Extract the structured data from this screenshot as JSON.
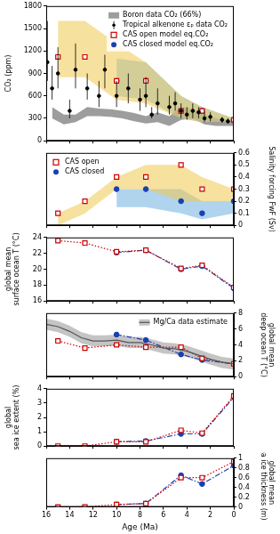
{
  "chart_data": [
    {
      "type": "line",
      "ylabel": "CO₂ (ppm)",
      "ylim": [
        0,
        1800
      ],
      "yticks": [
        0,
        300,
        600,
        900,
        1200,
        1500,
        1800
      ],
      "xlim": [
        16,
        0
      ],
      "xticks": [
        0,
        2,
        4,
        6,
        8,
        10,
        12,
        14,
        16
      ],
      "grid": false,
      "legend": "upper right",
      "tick_labels": "y",
      "series": [
        {
          "type": "band",
          "color": "#f0c850",
          "x": [
            15,
            12.7,
            10,
            7.5,
            4.5,
            2.7,
            0
          ],
          "lower": [
            850,
            850,
            550,
            500,
            300,
            250,
            260
          ],
          "upper": [
            1600,
            1600,
            1300,
            1050,
            600,
            450,
            300
          ]
        },
        {
          "type": "band",
          "color": "#6fb0e0",
          "x": [
            10,
            7.5,
            4.5,
            2.7,
            0
          ],
          "lower": [
            600,
            550,
            300,
            250,
            260
          ],
          "upper": [
            1100,
            1050,
            600,
            450,
            300
          ]
        },
        {
          "name": "Boron data CO₂ (66%)",
          "type": "band",
          "color": "#4d4d4d",
          "x": [
            15.5,
            14.5,
            13.5,
            12.5,
            11.5,
            10.5,
            9.5,
            8.5,
            7.5,
            6.5,
            5.5,
            4.5,
            3.5,
            2.5,
            1.5,
            0.5,
            0
          ],
          "lower": [
            300,
            220,
            250,
            330,
            330,
            320,
            300,
            260,
            230,
            250,
            200,
            280,
            300,
            220,
            200,
            200,
            200
          ],
          "upper": [
            450,
            350,
            350,
            450,
            430,
            420,
            400,
            370,
            330,
            380,
            330,
            450,
            430,
            350,
            300,
            280,
            280
          ]
        },
        {
          "name": "Tropical alkenone εₚ data CO₂",
          "type": "errorbar",
          "color": "#000000",
          "marker": "circle",
          "line_style": "none",
          "x": [
            15.9,
            15.5,
            15,
            14,
            13.5,
            12.5,
            11.5,
            11,
            10,
            9,
            8,
            7.5,
            7,
            6.5,
            5.5,
            5,
            4.5,
            4,
            3.5,
            3,
            2.5,
            2,
            1,
            0.5
          ],
          "values": [
            1050,
            700,
            900,
            400,
            950,
            700,
            600,
            950,
            600,
            700,
            550,
            600,
            350,
            500,
            450,
            500,
            400,
            350,
            400,
            380,
            300,
            320,
            280,
            260
          ],
          "lower": [
            800,
            550,
            700,
            300,
            700,
            550,
            450,
            700,
            450,
            500,
            400,
            450,
            300,
            350,
            350,
            400,
            300,
            280,
            300,
            300,
            250,
            260,
            240,
            230
          ],
          "upper": [
            1600,
            1000,
            1250,
            550,
            1300,
            900,
            800,
            1150,
            800,
            900,
            700,
            850,
            450,
            700,
            600,
            650,
            500,
            450,
            500,
            450,
            380,
            380,
            320,
            300
          ]
        },
        {
          "name": "CAS open model eq.CO₂",
          "type": "line",
          "color": "#cc0000",
          "marker": "square",
          "line_style": "none",
          "x": [
            15,
            12.7,
            10,
            7.5,
            4.5,
            2.7,
            0
          ],
          "values": [
            1120,
            1120,
            800,
            800,
            400,
            400,
            280
          ]
        },
        {
          "name": "CAS closed model eq.CO₂",
          "type": "line",
          "color": "#1a3fb0",
          "marker": "circle",
          "line_style": "none",
          "x": [
            10,
            7.5,
            4.5,
            2.7,
            0
          ],
          "values": [
            800,
            800,
            400,
            400,
            280
          ]
        }
      ]
    },
    {
      "type": "line",
      "y2label": "Salinity forcing FwF (Sv)",
      "y2lim": [
        0,
        0.6
      ],
      "y2ticks": [
        0,
        0.1,
        0.2,
        0.3,
        0.4,
        0.5,
        0.6
      ],
      "xlim": [
        16,
        0
      ],
      "xticks": [
        0,
        2,
        4,
        6,
        8,
        10,
        12,
        14,
        16
      ],
      "grid": false,
      "legend": "upper left",
      "tick_labels": "y",
      "series": [
        {
          "type": "band",
          "axis": "y2",
          "color": "#f0c850",
          "x": [
            15,
            12.7,
            10,
            7.5,
            4.5,
            2.7,
            0
          ],
          "lower": [
            0,
            0.1,
            0.3,
            0.3,
            0.2,
            0.2,
            0.2
          ],
          "upper": [
            0.1,
            0.2,
            0.4,
            0.5,
            0.5,
            0.4,
            0.3
          ]
        },
        {
          "type": "band",
          "axis": "y2",
          "color": "#6fb0e0",
          "x": [
            10,
            7.5,
            4.5,
            2.7,
            0
          ],
          "lower": [
            0.15,
            0.15,
            0.1,
            0.05,
            0.1
          ],
          "upper": [
            0.3,
            0.3,
            0.3,
            0.2,
            0.2
          ]
        },
        {
          "name": "CAS open",
          "type": "line",
          "axis": "y2",
          "color": "#cc0000",
          "marker": "square",
          "line_style": "none",
          "x": [
            15,
            12.7,
            10,
            7.5,
            4.5,
            2.7,
            0
          ],
          "values": [
            0.1,
            0.2,
            0.4,
            0.4,
            0.5,
            0.3,
            0.3
          ]
        },
        {
          "name": "CAS closed",
          "type": "line",
          "axis": "y2",
          "color": "#1a3fb0",
          "marker": "circle",
          "line_style": "none",
          "x": [
            10,
            7.5,
            4.5,
            2.7,
            0
          ],
          "values": [
            0.3,
            0.3,
            0.2,
            0.1,
            0.2
          ]
        }
      ]
    },
    {
      "type": "line",
      "ylabel": [
        "global mean",
        "surface ocean T (°C)"
      ],
      "ylim": [
        16,
        24
      ],
      "yticks": [
        16,
        18,
        20,
        22,
        24
      ],
      "xlim": [
        16,
        0
      ],
      "xticks": [
        0,
        2,
        4,
        6,
        8,
        10,
        12,
        14,
        16
      ],
      "grid": false,
      "tick_labels": "y",
      "series": [
        {
          "type": "line",
          "color": "#cc0000",
          "marker": "square",
          "line_style": "dotted",
          "x": [
            15,
            12.7,
            10,
            7.5,
            4.5,
            2.7,
            0
          ],
          "values": [
            23.6,
            23.3,
            22.2,
            22.4,
            20.1,
            20.5,
            17.7
          ]
        },
        {
          "type": "line",
          "color": "#1a3fb0",
          "marker": "circle",
          "line_style": "dashdot",
          "x": [
            10,
            7.5,
            4.5,
            2.7,
            0
          ],
          "values": [
            22.1,
            22.4,
            20.0,
            20.4,
            17.6
          ]
        }
      ]
    },
    {
      "type": "line",
      "y2label": [
        "global mean",
        "deep ocean T (°C)"
      ],
      "y2lim": [
        0,
        8
      ],
      "y2ticks": [
        0,
        2,
        4,
        6,
        8
      ],
      "xlim": [
        16,
        0
      ],
      "xticks": [
        0,
        2,
        4,
        6,
        8,
        10,
        12,
        14,
        16
      ],
      "grid": false,
      "legend": "upper right",
      "tick_labels": "y",
      "series": [
        {
          "name": "Mg/Ca data estimate",
          "type": "line",
          "axis": "y2",
          "color": "#555555",
          "line_style": "solid",
          "x": [
            16,
            15,
            14,
            13,
            12,
            11,
            10,
            9,
            8,
            7,
            6,
            5,
            4,
            3,
            2,
            1,
            0
          ],
          "values": [
            6.6,
            6.3,
            5.7,
            4.9,
            4.5,
            4.5,
            4.6,
            4.3,
            4.3,
            4.0,
            3.6,
            3.5,
            3.2,
            2.7,
            2.2,
            1.8,
            1.6
          ],
          "lower": [
            5.9,
            5.6,
            5.0,
            4.2,
            3.8,
            3.8,
            3.9,
            3.6,
            3.6,
            3.3,
            2.9,
            2.8,
            2.5,
            2.0,
            1.5,
            1.1,
            0.9
          ],
          "upper": [
            7.3,
            7.0,
            6.4,
            5.6,
            5.2,
            5.2,
            5.3,
            5.0,
            5.0,
            4.7,
            4.3,
            4.2,
            3.9,
            3.4,
            2.9,
            2.5,
            2.3
          ]
        },
        {
          "type": "line",
          "axis": "y2",
          "color": "#cc0000",
          "marker": "square",
          "line_style": "dotted",
          "x": [
            15,
            12.7,
            10,
            7.5,
            4.5,
            2.7,
            0
          ],
          "values": [
            4.5,
            3.6,
            4.0,
            3.7,
            3.7,
            2.3,
            1.6
          ]
        },
        {
          "type": "line",
          "axis": "y2",
          "color": "#1a3fb0",
          "marker": "circle",
          "line_style": "dashdot",
          "x": [
            10,
            7.5,
            4.5,
            2.7,
            0
          ],
          "values": [
            5.3,
            4.6,
            2.8,
            2.1,
            1.6
          ]
        }
      ]
    },
    {
      "type": "line",
      "ylabel": [
        "global",
        "sea ice extent (%)"
      ],
      "ylim": [
        0,
        4
      ],
      "yticks": [
        0,
        1,
        2,
        3,
        4
      ],
      "xlim": [
        16,
        0
      ],
      "xticks": [
        0,
        2,
        4,
        6,
        8,
        10,
        12,
        14,
        16
      ],
      "grid": false,
      "tick_labels": "y",
      "series": [
        {
          "type": "line",
          "color": "#cc0000",
          "marker": "square",
          "line_style": "dotted",
          "x": [
            15,
            12.7,
            10,
            7.5,
            4.5,
            2.7,
            0
          ],
          "values": [
            0,
            0,
            0.3,
            0.3,
            1.1,
            0.9,
            3.5
          ]
        },
        {
          "type": "line",
          "color": "#1a3fb0",
          "marker": "circle",
          "line_style": "dashdot",
          "x": [
            10,
            7.5,
            4.5,
            2.7,
            0
          ],
          "values": [
            0.3,
            0.35,
            0.85,
            0.85,
            3.4
          ]
        }
      ]
    },
    {
      "type": "line",
      "y2label": [
        "global mean",
        "sea ice thickness (m)"
      ],
      "y2lim": [
        0,
        1
      ],
      "y2ticks": [
        0,
        0.2,
        0.4,
        0.6,
        0.8,
        1
      ],
      "xlabel": "Age (Ma)",
      "xlim": [
        16,
        0
      ],
      "xticks": [
        0,
        2,
        4,
        6,
        8,
        10,
        12,
        14,
        16
      ],
      "grid": false,
      "tick_labels": true,
      "series": [
        {
          "type": "line",
          "axis": "y2",
          "color": "#cc0000",
          "marker": "square",
          "line_style": "dotted",
          "x": [
            15,
            12.7,
            10,
            7.5,
            4.5,
            2.7,
            0
          ],
          "values": [
            0,
            0,
            0.05,
            0.07,
            0.6,
            0.6,
            0.93
          ]
        },
        {
          "type": "line",
          "axis": "y2",
          "color": "#1a3fb0",
          "marker": "circle",
          "line_style": "dashdot",
          "x": [
            10,
            7.5,
            4.5,
            2.7,
            0
          ],
          "values": [
            0.05,
            0.07,
            0.65,
            0.47,
            0.85
          ]
        }
      ]
    }
  ]
}
